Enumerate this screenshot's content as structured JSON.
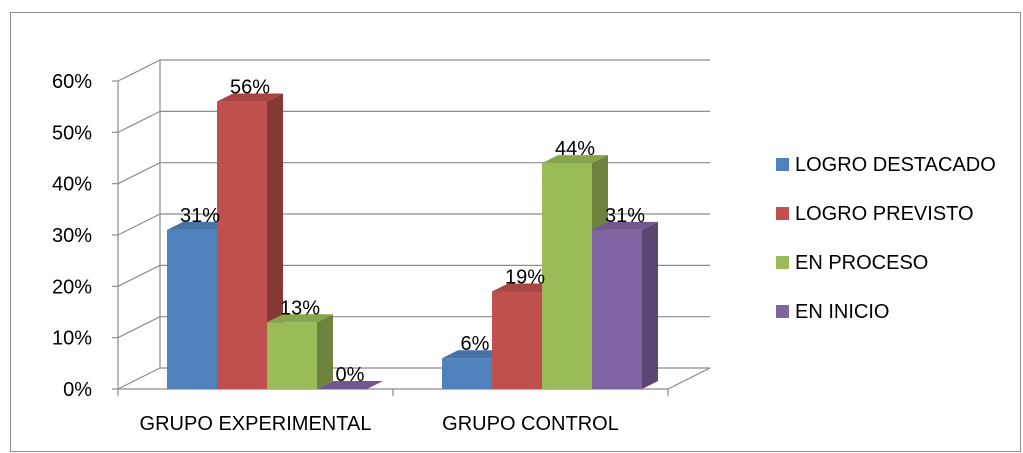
{
  "chart_data": {
    "type": "bar",
    "categories": [
      "GRUPO EXPERIMENTAL",
      "GRUPO CONTROL"
    ],
    "series": [
      {
        "name": "LOGRO DESTACADO",
        "values": [
          31,
          6
        ],
        "color": "#4F81BD"
      },
      {
        "name": "LOGRO PREVISTO",
        "values": [
          56,
          19
        ],
        "color": "#C0504D"
      },
      {
        "name": "EN PROCESO",
        "values": [
          13,
          44
        ],
        "color": "#9BBB59"
      },
      {
        "name": "EN INICIO",
        "values": [
          0,
          31
        ],
        "color": "#8064A2"
      }
    ],
    "y_ticks": [
      "0%",
      "10%",
      "20%",
      "30%",
      "40%",
      "50%",
      "60%"
    ],
    "ylim": [
      0,
      60
    ],
    "value_suffix": "%",
    "grid": true,
    "three_d": true,
    "legend_position": "right"
  }
}
